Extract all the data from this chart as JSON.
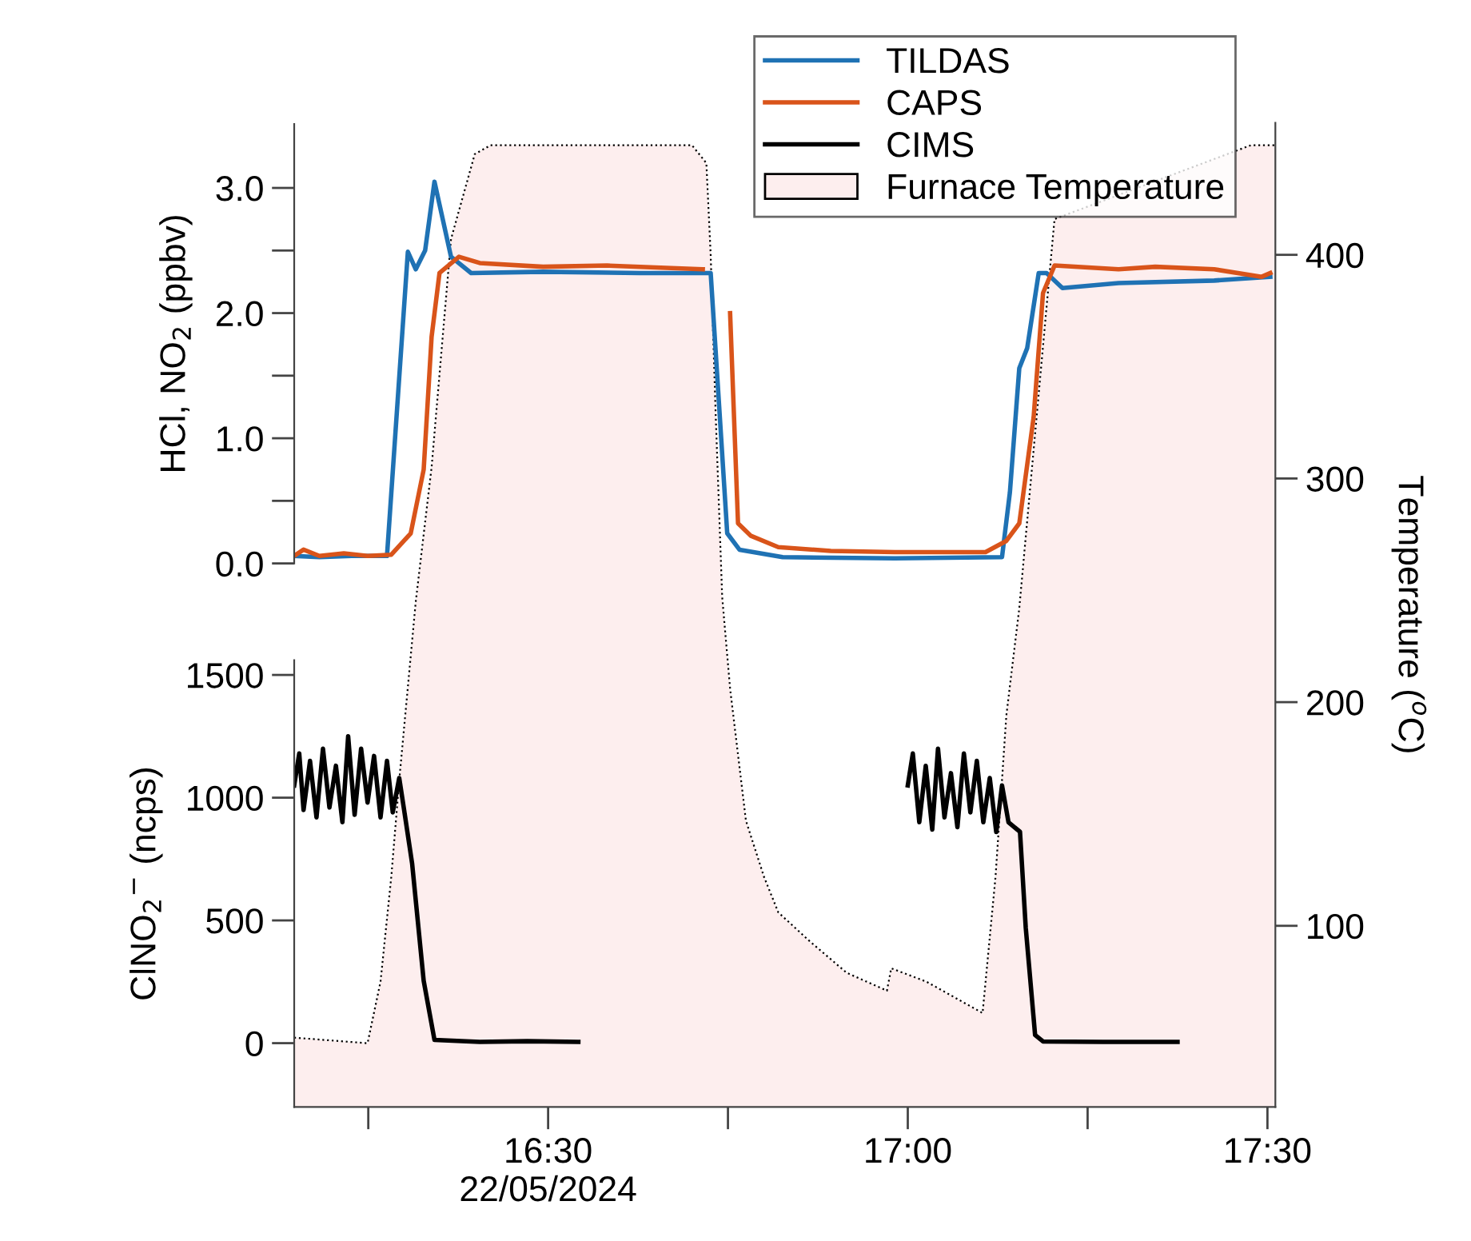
{
  "chart_data": [
    {
      "type": "line",
      "legend": "top right",
      "ylabel": "HCl, NO$_{2}$ (ppbv)",
      "xlim": [
        16.147,
        17.511
      ],
      "ylim": [
        0,
        3.51
      ],
      "yticks": [
        {
          "value": 0,
          "label": "0.0"
        },
        {
          "value": 0.5,
          "label": null
        },
        {
          "value": 1,
          "label": "1.0"
        },
        {
          "value": 1.5,
          "label": null
        },
        {
          "value": 2,
          "label": "2.0"
        },
        {
          "value": 2.5,
          "label": null
        },
        {
          "value": 3,
          "label": "3.0"
        }
      ],
      "tick_labels": "y",
      "series": [
        {
          "name": "TILDAS",
          "color": "#1f72b4",
          "x": [
            16.147,
            16.182,
            16.227,
            16.276,
            16.305,
            16.316,
            16.329,
            16.342,
            16.365,
            16.393,
            16.493,
            16.627,
            16.726,
            16.749,
            16.766,
            16.826,
            16.982,
            17.131,
            17.142,
            17.155,
            17.166,
            17.182,
            17.193,
            17.215,
            17.293,
            17.426,
            17.504
          ],
          "values": [
            0.06,
            0.05,
            0.06,
            0.06,
            2.49,
            2.35,
            2.5,
            3.05,
            2.45,
            2.32,
            2.33,
            2.32,
            2.32,
            0.24,
            0.11,
            0.05,
            0.04,
            0.05,
            0.57,
            1.56,
            1.72,
            2.32,
            2.32,
            2.2,
            2.24,
            2.26,
            2.29
          ]
        },
        {
          "name": "CAPS",
          "color": "#d9541a",
          "x": [
            16.147,
            16.16,
            16.182,
            16.216,
            16.249,
            16.282,
            16.309,
            16.327,
            16.338,
            16.349,
            16.376,
            16.405,
            16.493,
            16.582,
            16.671,
            16.715,
            16.735,
            16.753,
            16.764,
            16.782,
            16.82,
            16.893,
            16.982,
            17.108,
            17.137,
            17.155,
            17.175,
            17.188,
            17.204,
            17.293,
            17.344,
            17.426,
            17.492,
            17.504
          ],
          "values": [
            0.06,
            0.11,
            0.06,
            0.08,
            0.06,
            0.07,
            0.24,
            0.75,
            1.81,
            2.32,
            2.45,
            2.4,
            2.37,
            2.38,
            2.36,
            2.35,
            null,
            2.0,
            0.32,
            0.22,
            0.13,
            0.1,
            0.09,
            0.09,
            0.18,
            0.32,
            1.17,
            2.16,
            2.38,
            2.35,
            2.37,
            2.35,
            2.29,
            2.32
          ]
        }
      ]
    },
    {
      "type": "line",
      "legend": "top right",
      "ylabel": "ClNO$_{2}$$^{−}$ (ncps)",
      "xlim": [
        16.147,
        17.511
      ],
      "ylim": [
        -260,
        1560
      ],
      "yticks": [
        0,
        500,
        1000,
        1500
      ],
      "xticks": [
        {
          "value": 16.25,
          "label": null
        },
        {
          "value": 16.5,
          "label": "16:30\n22/05/2024"
        },
        {
          "value": 16.75,
          "label": null
        },
        {
          "value": 17.0,
          "label": "17:00"
        },
        {
          "value": 17.25,
          "label": null
        },
        {
          "value": 17.5,
          "label": "17:30"
        }
      ],
      "series": [
        {
          "name": "CIMS",
          "color": "#000000",
          "x": [
            16.147,
            16.154,
            16.16,
            16.169,
            16.178,
            16.187,
            16.196,
            16.205,
            16.214,
            16.222,
            16.231,
            16.24,
            16.249,
            16.258,
            16.267,
            16.276,
            16.284,
            16.293,
            16.3,
            16.311,
            16.327,
            16.342,
            16.405,
            16.471,
            16.542,
            16.8,
            17.0,
            17.007,
            17.016,
            17.025,
            17.034,
            17.042,
            17.051,
            17.06,
            17.069,
            17.078,
            17.087,
            17.096,
            17.105,
            17.114,
            17.123,
            17.131,
            17.14,
            17.156,
            17.164,
            17.177,
            17.188,
            17.271,
            17.375
          ],
          "values": [
            1050,
            1180,
            950,
            1150,
            920,
            1200,
            960,
            1130,
            900,
            1250,
            930,
            1200,
            980,
            1170,
            920,
            1150,
            940,
            1080,
            946,
            730,
            254,
            13,
            5,
            8,
            5,
            null,
            1050,
            1180,
            900,
            1130,
            870,
            1200,
            920,
            1100,
            880,
            1180,
            940,
            1150,
            900,
            1080,
            860,
            1050,
            900,
            861,
            470,
            33,
            7,
            5,
            5
          ]
        }
      ]
    },
    {
      "type": "area",
      "y2label": "Temperature ($^{o}$C)",
      "xlim": [
        16.147,
        17.511
      ],
      "y2lim": [
        19,
        459
      ],
      "y2ticks": [
        100,
        200,
        300,
        400
      ],
      "tick_labels": "y",
      "legend": "top right",
      "line_style": "dotted",
      "series": [
        {
          "name": "Furnace Temperature",
          "color": "#fdeeee",
          "axis": "y2",
          "x": [
            16.147,
            16.249,
            16.267,
            16.282,
            16.293,
            16.316,
            16.338,
            16.365,
            16.398,
            16.42,
            16.7,
            16.72,
            16.726,
            16.733,
            16.742,
            16.753,
            16.775,
            16.8,
            16.82,
            16.864,
            16.915,
            16.971,
            16.977,
            17.026,
            17.104,
            17.122,
            17.137,
            17.155,
            17.204,
            17.477,
            17.51
          ],
          "values": [
            50,
            47.5,
            75,
            122,
            165,
            245,
            305,
            407,
            445,
            449,
            449,
            441,
            400,
            328,
            247,
            206,
            147,
            122,
            106,
            93,
            79,
            71,
            81,
            75,
            61,
            122,
            194,
            242,
            416,
            449,
            449
          ]
        }
      ]
    }
  ]
}
